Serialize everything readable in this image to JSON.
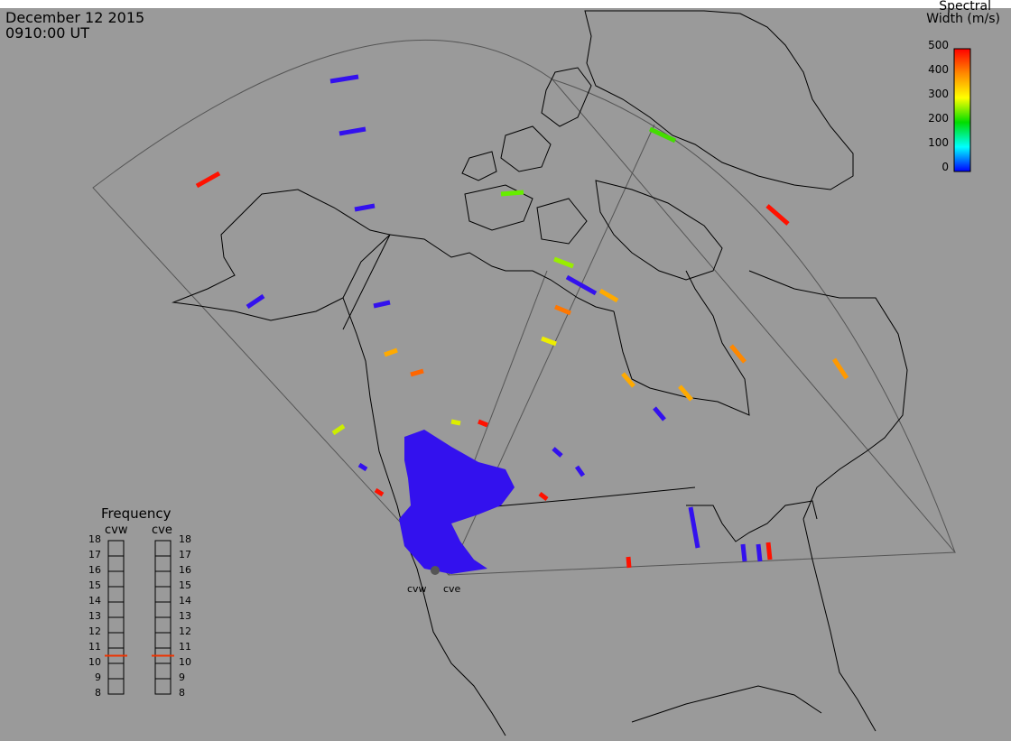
{
  "header": {
    "date": "December 12 2015",
    "time": "0910:00 UT"
  },
  "colorbar": {
    "title_line1": "Spectral",
    "title_line2": "Width (m/s)",
    "ticks": [
      "500",
      "400",
      "300",
      "200",
      "100",
      "0"
    ],
    "gradient_stops": [
      "#ff0000",
      "#ff8800",
      "#ffff00",
      "#00dd00",
      "#00ffff",
      "#0000ff"
    ]
  },
  "radars": {
    "west_label": "cvw",
    "east_label": "cve"
  },
  "frequency_panel": {
    "title": "Frequency",
    "column_left": "cvw",
    "column_right": "cve",
    "ticks": [
      "18",
      "17",
      "16",
      "15",
      "14",
      "13",
      "12",
      "11",
      "10",
      "9",
      "8"
    ],
    "cvw_value_mhz": 10.5,
    "cve_value_mhz": 10.5,
    "marker_color": "#ee3300"
  },
  "colors": {
    "background": "#9a9a9a",
    "coastline": "#000000",
    "fov_outline": "#555555"
  }
}
